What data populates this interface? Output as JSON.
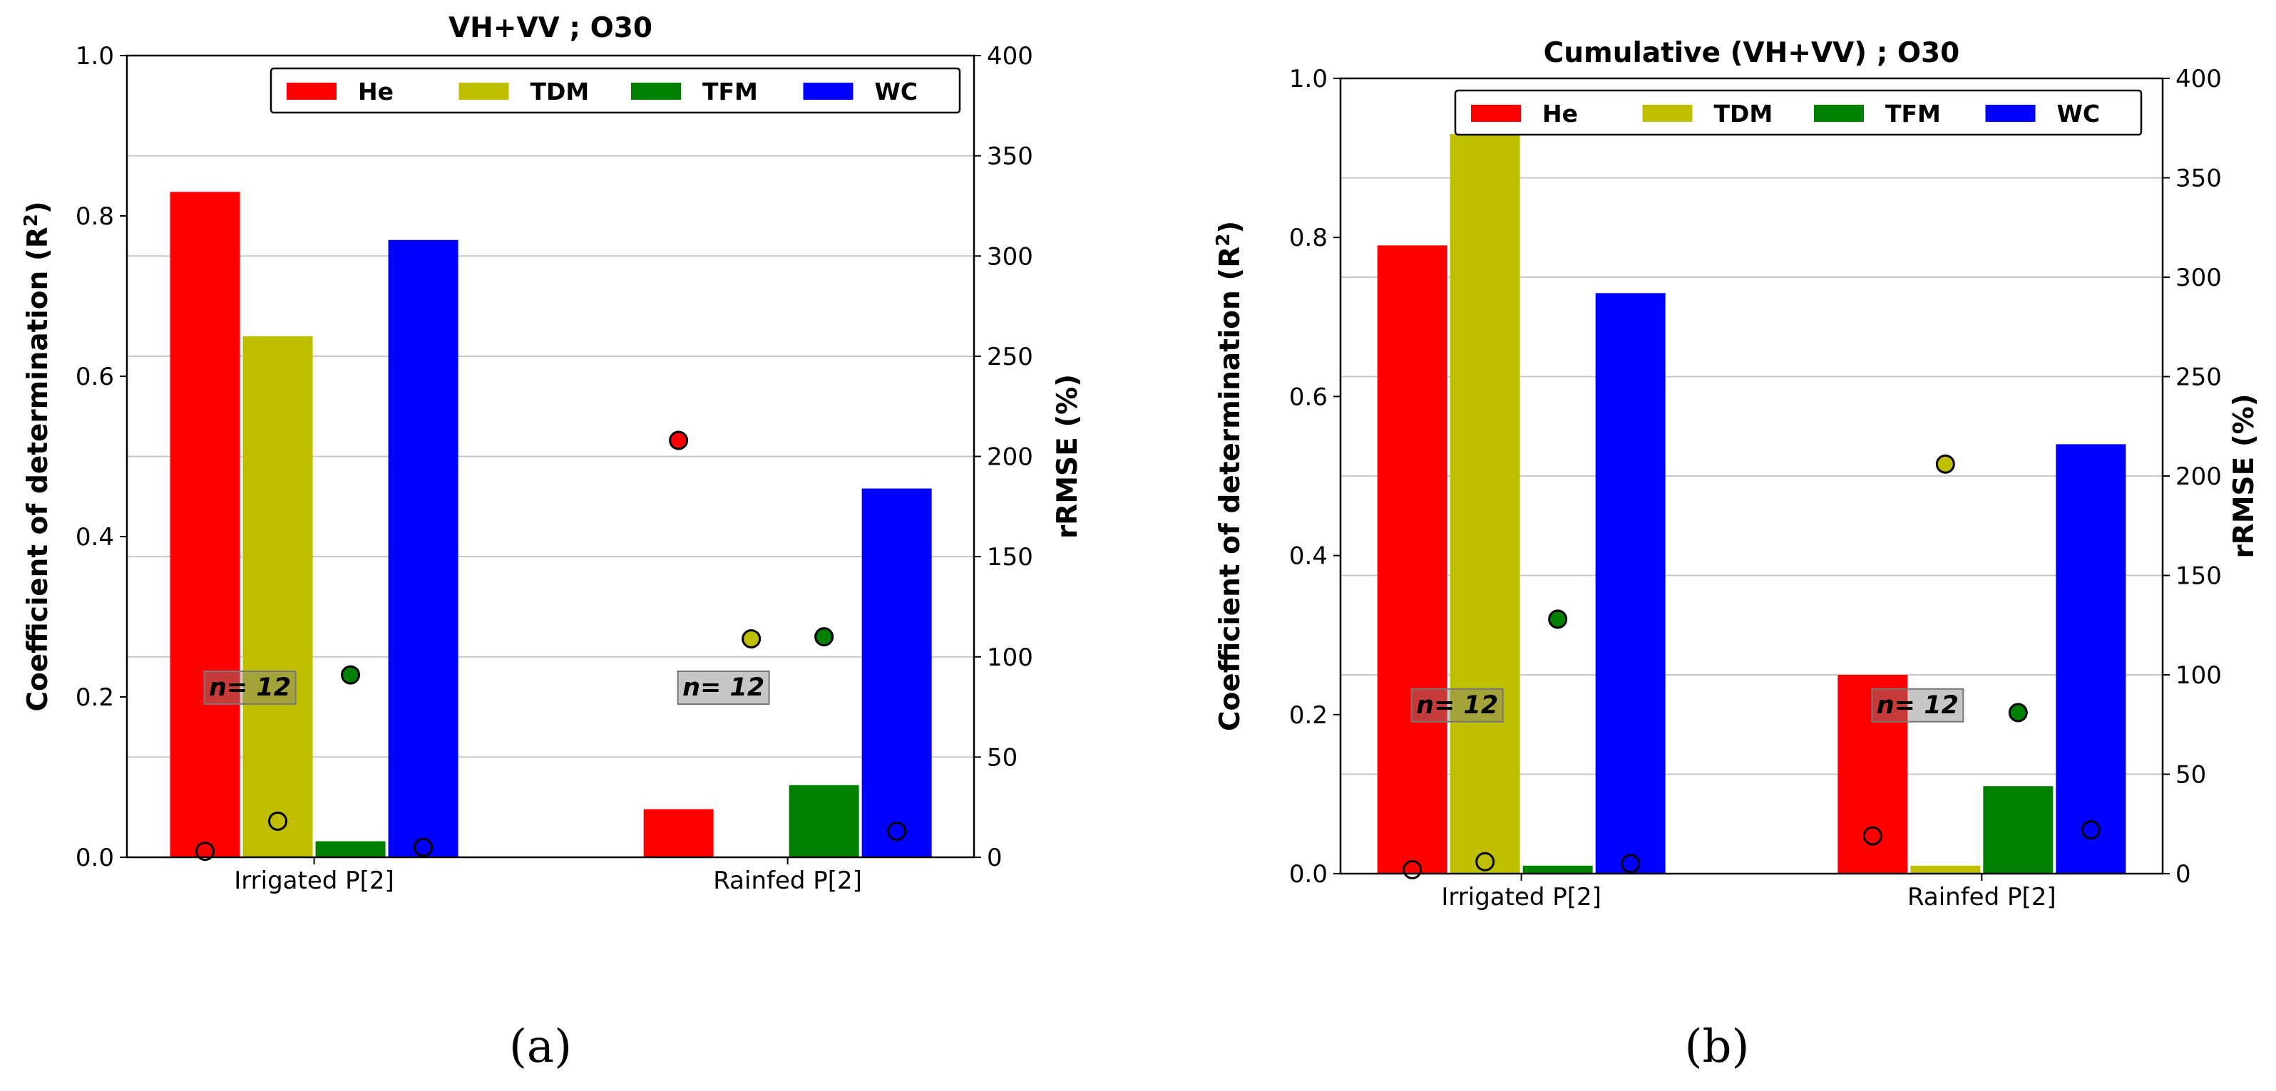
{
  "chart_data": [
    {
      "type": "bar",
      "title": "VH+VV ; O30",
      "ylabel": "Coefficient of determination (R",
      "ylabel_sup": "2",
      "ylabel_close": ")",
      "y2label": "rRMSE (%)",
      "ylim": [
        0,
        1.0
      ],
      "y2lim": [
        0,
        400
      ],
      "yticks": [
        "0.0",
        "0.2",
        "0.4",
        "0.6",
        "0.8",
        "1.0"
      ],
      "y2ticks": [
        "0",
        "50",
        "100",
        "150",
        "200",
        "250",
        "300",
        "350",
        "400"
      ],
      "categories": [
        "Irrigated P[2]",
        "Rainfed P[2]"
      ],
      "annotations": [
        "n= 12",
        "n= 12"
      ],
      "legend_position": "top-right",
      "series": [
        {
          "name": "He",
          "color": "#ff0000",
          "r2": [
            0.83,
            0.06
          ],
          "rrmse": [
            3,
            208
          ]
        },
        {
          "name": "TDM",
          "color": "#bfbf00",
          "r2": [
            0.65,
            0.0
          ],
          "rrmse": [
            18,
            109
          ]
        },
        {
          "name": "TFM",
          "color": "#008000",
          "r2": [
            0.02,
            0.09
          ],
          "rrmse": [
            91,
            110
          ]
        },
        {
          "name": "WC",
          "color": "#0000ff",
          "r2": [
            0.77,
            0.46
          ],
          "rrmse": [
            5,
            13
          ]
        }
      ],
      "caption": "(a)"
    },
    {
      "type": "bar",
      "title": "Cumulative (VH+VV) ; O30",
      "ylabel": "Coefficient of determination (R",
      "ylabel_sup": "2",
      "ylabel_close": ")",
      "y2label": "rRMSE (%)",
      "ylim": [
        0,
        1.0
      ],
      "y2lim": [
        0,
        400
      ],
      "yticks": [
        "0.0",
        "0.2",
        "0.4",
        "0.6",
        "0.8",
        "1.0"
      ],
      "y2ticks": [
        "0",
        "50",
        "100",
        "150",
        "200",
        "250",
        "300",
        "350",
        "400"
      ],
      "categories": [
        "Irrigated P[2]",
        "Rainfed P[2]"
      ],
      "annotations": [
        "n= 12",
        "n= 12"
      ],
      "legend_position": "top-right",
      "series": [
        {
          "name": "He",
          "color": "#ff0000",
          "r2": [
            0.79,
            0.25
          ],
          "rrmse": [
            2,
            19
          ]
        },
        {
          "name": "TDM",
          "color": "#bfbf00",
          "r2": [
            0.93,
            0.01
          ],
          "rrmse": [
            6,
            206
          ]
        },
        {
          "name": "TFM",
          "color": "#008000",
          "r2": [
            0.01,
            0.11
          ],
          "rrmse": [
            128,
            81
          ]
        },
        {
          "name": "WC",
          "color": "#0000ff",
          "r2": [
            0.73,
            0.54
          ],
          "rrmse": [
            5,
            22
          ]
        }
      ],
      "caption": "(b)"
    }
  ]
}
